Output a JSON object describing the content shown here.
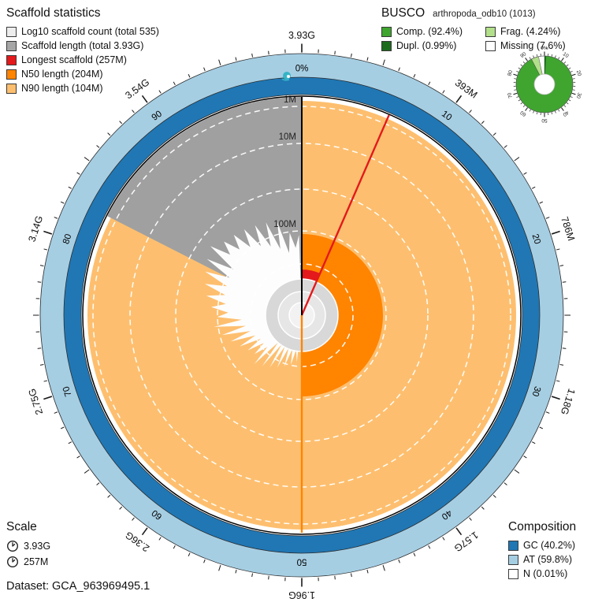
{
  "dataset": {
    "label": "Dataset: GCA_963969495.1",
    "accession": "GCA_963969495.1"
  },
  "legends": {
    "scaffold_stats": {
      "title": "Scaffold statistics",
      "items": [
        {
          "label": "Log10 scaffold count (total 535)",
          "color": "#ededed"
        },
        {
          "label": "Scaffold length (total 3.93G)",
          "color": "#a6a6a6"
        },
        {
          "label": "Longest scaffold (257M)",
          "color": "#e3191c"
        },
        {
          "label": "N50 length (204M)",
          "color": "#ff8400"
        },
        {
          "label": "N90 length (104M)",
          "color": "#fdbf6f"
        }
      ]
    },
    "busco": {
      "title": "BUSCO",
      "subtitle": "arthropoda_odb10 (1013)",
      "items": [
        {
          "label": "Comp. (92.4%)",
          "color": "#3fa52f"
        },
        {
          "label": "Dupl. (0.99%)",
          "color": "#1d6b1d"
        },
        {
          "label": "Frag. (4.24%)",
          "color": "#b2df8a"
        },
        {
          "label": "Missing (7.6%)",
          "color": "#ffffff"
        }
      ]
    },
    "scale": {
      "title": "Scale",
      "items": [
        {
          "label": "3.93G"
        },
        {
          "label": "257M"
        }
      ]
    },
    "composition": {
      "title": "Composition",
      "items": [
        {
          "label": "GC (40.2%)",
          "color": "#2077b4"
        },
        {
          "label": "AT (59.8%)",
          "color": "#a6cee3"
        },
        {
          "label": "N (0.01%)",
          "color": "#ffffff"
        }
      ]
    }
  },
  "chart_data": [
    {
      "type": "snail",
      "title": "Assembly snail plot",
      "dataset": "GCA_963969495.1",
      "scaffold_count_total": 535,
      "total_length_label": "3.93G",
      "total_length_bp": 3930000000,
      "longest_scaffold_label": "257M",
      "longest_scaffold_bp": 257000000,
      "n50_label": "204M",
      "n50_bp": 204000000,
      "n90_label": "104M",
      "n90_bp": 104000000,
      "outer_axis_labels": [
        "3.93G",
        "393M",
        "786M",
        "1.18G",
        "1.57G",
        "1.96G",
        "2.36G",
        "2.75G",
        "3.14G",
        "3.54G"
      ],
      "pct_axis_labels": [
        "0%",
        "10",
        "20",
        "30",
        "40",
        "50",
        "60",
        "70",
        "80",
        "90"
      ],
      "radial_axis_labels": [
        "1M",
        "10M",
        "100M"
      ],
      "composition": {
        "gc_pct": 40.2,
        "at_pct": 59.8,
        "n_pct": 0.01
      },
      "colors": {
        "count": "#fdfdfd",
        "length": "#a0a0a0",
        "longest": "#e3191c",
        "n50": "#ff8400",
        "n90": "#fdbf6f",
        "gc": "#2077b4",
        "at": "#a6cee3",
        "axis": "#111111",
        "logo": "#35b5c6"
      }
    },
    {
      "type": "pie",
      "title": "BUSCO completeness donut",
      "lineage": "arthropoda_odb10",
      "busco_n": 1013,
      "slices": [
        {
          "name": "Complete",
          "pct": 92.4,
          "color": "#3fa52f"
        },
        {
          "name": "Duplicated",
          "pct": 0.99,
          "color": "#1d6b1d"
        },
        {
          "name": "Fragmented",
          "pct": 4.24,
          "color": "#b2df8a"
        },
        {
          "name": "Missing",
          "pct": 7.6,
          "color": "#ffffff"
        }
      ],
      "tick_labels": [
        "0%",
        "10",
        "20",
        "30",
        "40",
        "50",
        "60",
        "70",
        "80",
        "90"
      ]
    }
  ]
}
